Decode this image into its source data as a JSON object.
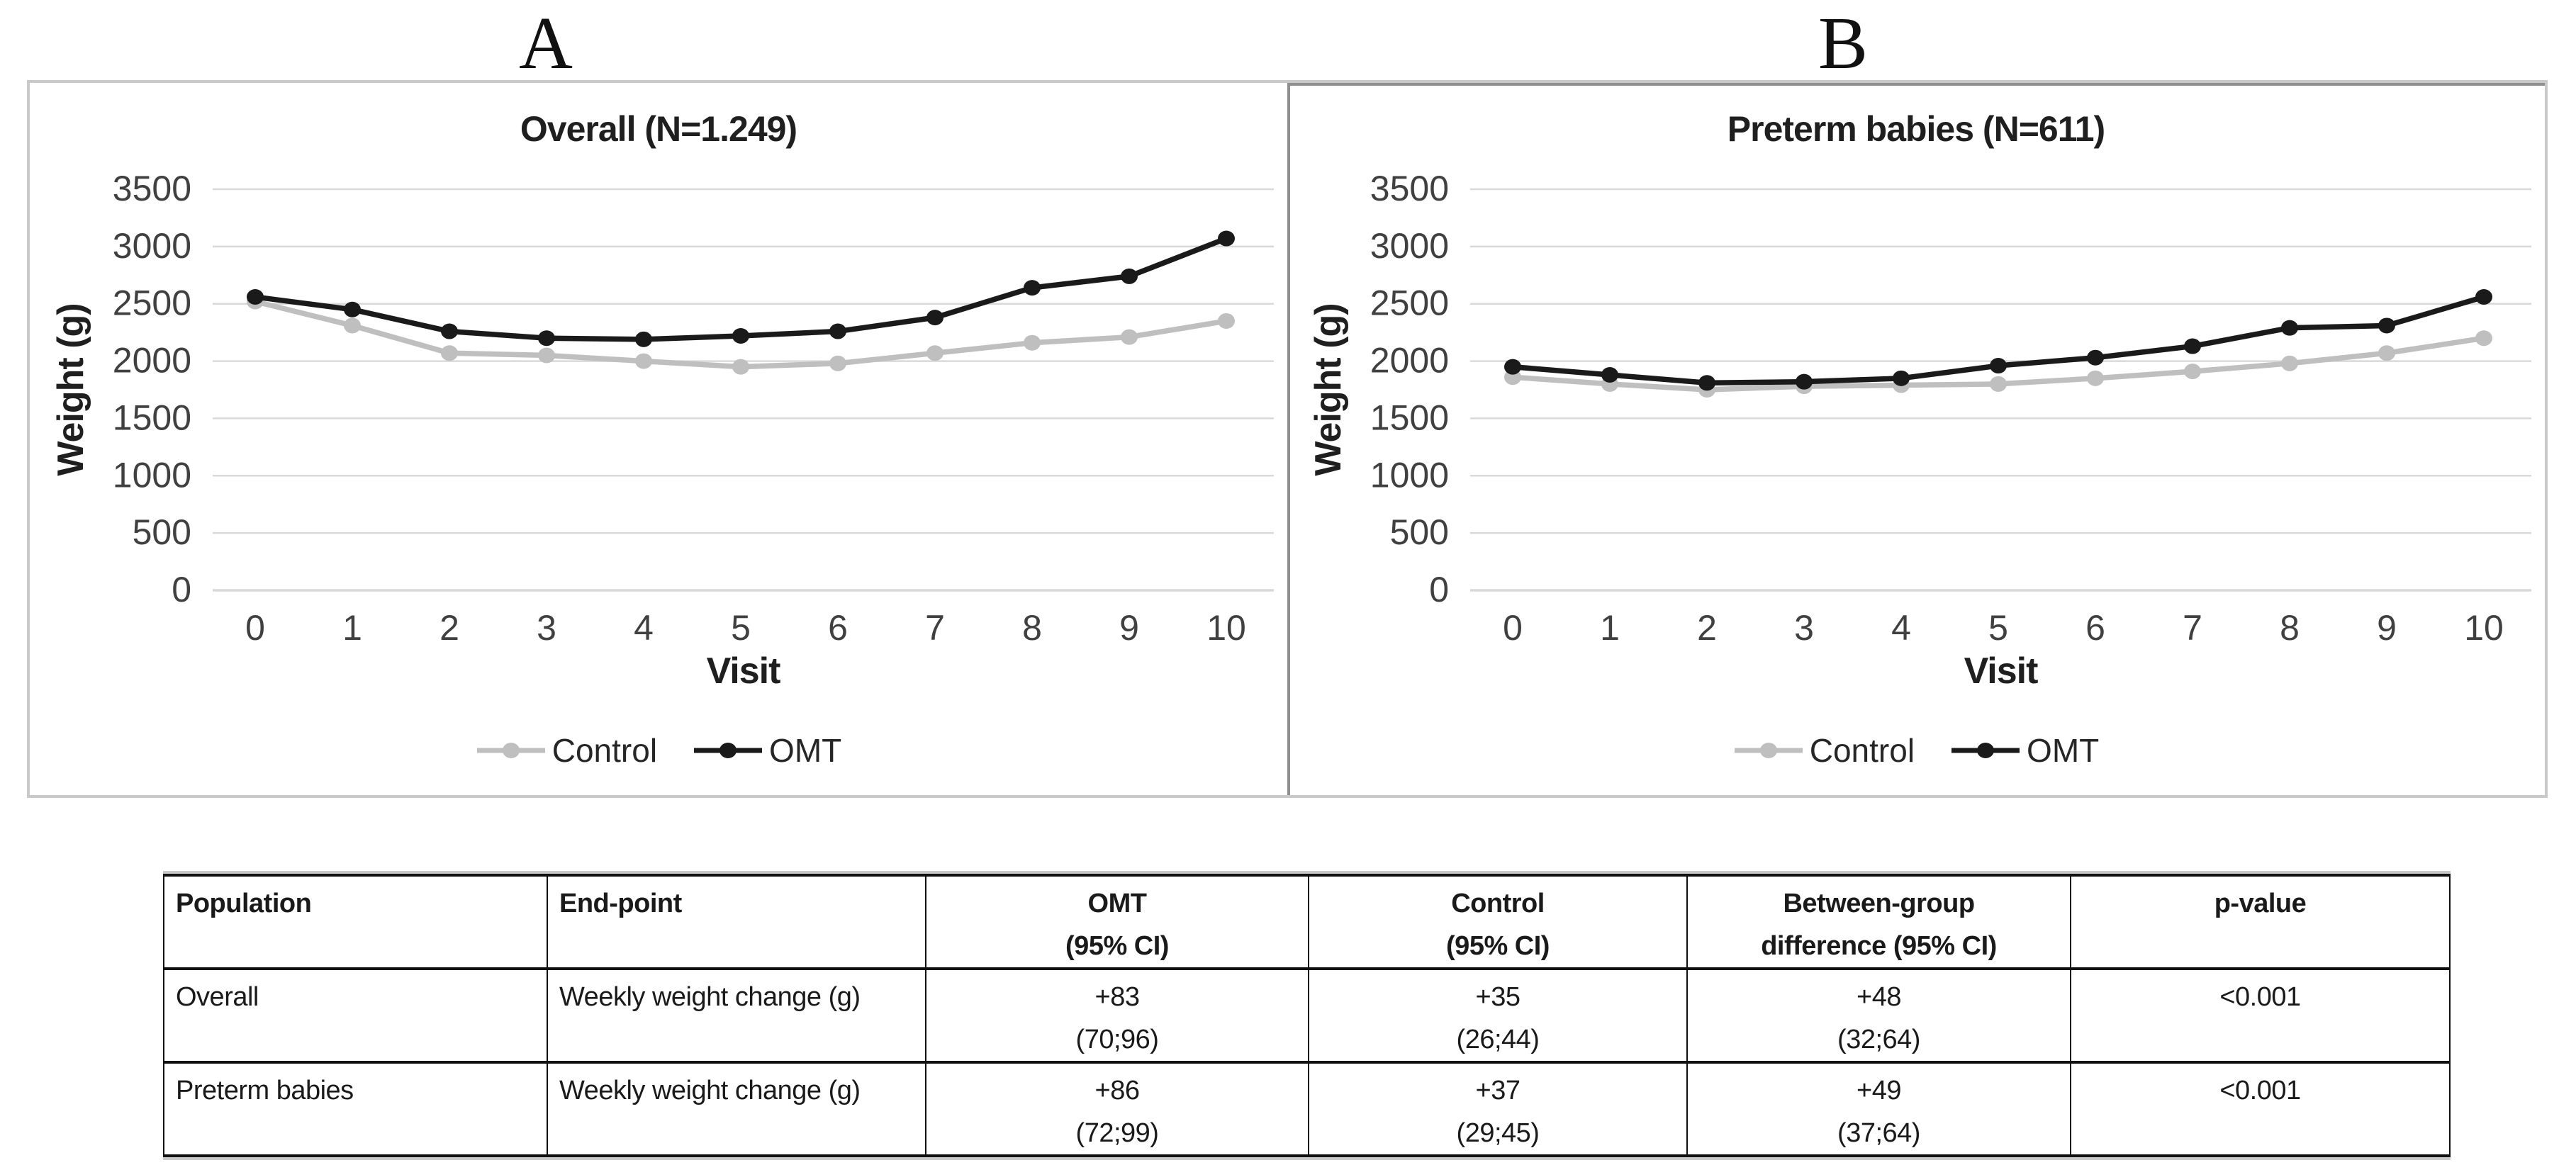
{
  "figure": {
    "panel_a_label": "A",
    "panel_b_label": "B"
  },
  "chart_data": [
    {
      "type": "line",
      "panel": "A",
      "title": "Overall (N=1.249)",
      "xlabel": "Visit",
      "ylabel": "Weight (g)",
      "x": [
        0,
        1,
        2,
        3,
        4,
        5,
        6,
        7,
        8,
        9,
        10
      ],
      "ylim": [
        0,
        3500
      ],
      "yticks": [
        3500,
        3000,
        2500,
        2000,
        1500,
        1000,
        500,
        0
      ],
      "grid": true,
      "grid_color": "#d9d9d9",
      "legend_position": "bottom",
      "series": [
        {
          "name": "Control",
          "color": "#bfbfbf",
          "values": [
            2520,
            2310,
            2070,
            2050,
            2000,
            1950,
            1980,
            2070,
            2160,
            2210,
            2350
          ]
        },
        {
          "name": "OMT",
          "color": "#1a1a1a",
          "values": [
            2560,
            2450,
            2260,
            2200,
            2190,
            2220,
            2260,
            2380,
            2640,
            2740,
            3070
          ]
        }
      ]
    },
    {
      "type": "line",
      "panel": "B",
      "title": "Preterm babies (N=611)",
      "xlabel": "Visit",
      "ylabel": "Weight (g)",
      "x": [
        0,
        1,
        2,
        3,
        4,
        5,
        6,
        7,
        8,
        9,
        10
      ],
      "ylim": [
        0,
        3500
      ],
      "yticks": [
        3500,
        3000,
        2500,
        2000,
        1500,
        1000,
        500,
        0
      ],
      "grid": true,
      "grid_color": "#d9d9d9",
      "legend_position": "bottom",
      "series": [
        {
          "name": "Control",
          "color": "#bfbfbf",
          "values": [
            1860,
            1800,
            1750,
            1780,
            1790,
            1800,
            1850,
            1910,
            1980,
            2070,
            2200
          ]
        },
        {
          "name": "OMT",
          "color": "#1a1a1a",
          "values": [
            1950,
            1880,
            1810,
            1820,
            1850,
            1960,
            2030,
            2130,
            2290,
            2310,
            2560
          ]
        }
      ]
    }
  ],
  "table": {
    "columns": [
      {
        "header_line1": "Population",
        "header_line2": "",
        "align": "left"
      },
      {
        "header_line1": "End-point",
        "header_line2": "",
        "align": "left"
      },
      {
        "header_line1": "OMT",
        "header_line2": "(95% CI)",
        "align": "center"
      },
      {
        "header_line1": "Control",
        "header_line2": "(95% CI)",
        "align": "center"
      },
      {
        "header_line1": "Between-group",
        "header_line2": "difference (95% CI)",
        "align": "center"
      },
      {
        "header_line1": "p-value",
        "header_line2": "",
        "align": "center"
      }
    ],
    "rows": [
      {
        "population": "Overall",
        "endpoint": "Weekly weight change (g)",
        "omt_value": "+83",
        "omt_ci": "(70;96)",
        "control_value": "+35",
        "control_ci": "(26;44)",
        "diff_value": "+48",
        "diff_ci": "(32;64)",
        "p_value": "<0.001"
      },
      {
        "population": "Preterm babies",
        "endpoint": "Weekly weight change (g)",
        "omt_value": "+86",
        "omt_ci": "(72;99)",
        "control_value": "+37",
        "control_ci": "(29;45)",
        "diff_value": "+49",
        "diff_ci": "(37;64)",
        "p_value": "<0.001"
      }
    ]
  }
}
